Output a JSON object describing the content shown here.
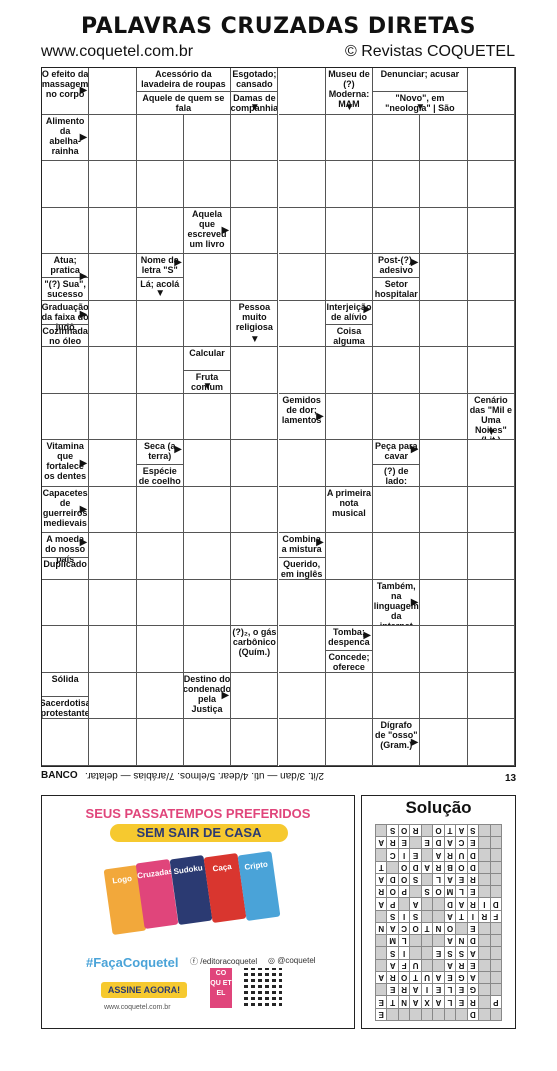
{
  "header": {
    "title": "PALAVRAS CRUZADAS DIRETAS",
    "site": "www.coquetel.com.br",
    "brand": "© Revistas COQUETEL"
  },
  "grid": {
    "clues": [
      {
        "r": 0,
        "c": 0,
        "parts": [
          "O efeito da massagem no corpo"
        ],
        "arrows": [
          {
            "d": "r",
            "y": 0.5
          }
        ]
      },
      {
        "r": 0,
        "c": 2,
        "span": 2,
        "parts": [
          "Acessório da lavadeira de roupas",
          "Aquele de quem se fala"
        ],
        "arrows": []
      },
      {
        "r": 0,
        "c": 4,
        "parts": [
          "Esgotado; cansado",
          "Damas de companhia"
        ],
        "arrows": [
          {
            "d": "d",
            "x": 0.5
          }
        ]
      },
      {
        "r": 0,
        "c": 6,
        "parts": [
          "Museu de (?) Moderna: MAM"
        ],
        "arrows": [
          {
            "d": "d",
            "x": 0.5
          }
        ]
      },
      {
        "r": 0,
        "c": 7,
        "span": 2,
        "parts": [
          "Denunciar; acusar",
          "\"Novo\", em \"neologia\" | São pagas aos correios"
        ],
        "arrows": [
          {
            "d": "d",
            "x": 0.5
          }
        ]
      },
      {
        "r": 1,
        "c": 0,
        "parts": [
          "Alimento da abelha-rainha"
        ],
        "arrows": [
          {
            "d": "r",
            "y": 0.5
          }
        ]
      },
      {
        "r": 3,
        "c": 3,
        "parts": [
          "Aquela que escreveu um livro"
        ],
        "arrows": [
          {
            "d": "r",
            "y": 0.5
          }
        ]
      },
      {
        "r": 4,
        "c": 0,
        "parts": [
          "Atua; pratica",
          "\"(?) Sua\", sucesso de Marisa Monte"
        ],
        "arrows": [
          {
            "d": "r",
            "y": 0.5
          }
        ]
      },
      {
        "r": 4,
        "c": 2,
        "parts": [
          "Nome da letra \"S\"",
          "Lá; acolá"
        ],
        "arrows": [
          {
            "d": "r",
            "y": 0.2
          },
          {
            "d": "d",
            "x": 0.5
          }
        ]
      },
      {
        "r": 4,
        "c": 7,
        "parts": [
          "Post-(?), adesivo",
          "Setor hospitalar"
        ],
        "arrows": [
          {
            "d": "r",
            "y": 0.2
          }
        ]
      },
      {
        "r": 5,
        "c": 0,
        "parts": [
          "Graduação da faixa do judô",
          "Cozinhada no óleo"
        ],
        "arrows": [
          {
            "d": "r",
            "y": 0.3
          }
        ]
      },
      {
        "r": 5,
        "c": 4,
        "parts": [
          "Pessoa muito religiosa"
        ],
        "arrows": [
          {
            "d": "d",
            "x": 0.5
          }
        ]
      },
      {
        "r": 5,
        "c": 6,
        "parts": [
          "Interjeição de alívio",
          "Coisa alguma"
        ],
        "arrows": [
          {
            "d": "r",
            "y": 0.2
          }
        ]
      },
      {
        "r": 6,
        "c": 3,
        "parts": [
          "Calcular",
          "Fruta comum em oásis"
        ],
        "arrows": [
          {
            "d": "d",
            "x": 0.5
          }
        ]
      },
      {
        "r": 7,
        "c": 5,
        "parts": [
          "Gemidos de dor; lamentos"
        ],
        "arrows": [
          {
            "d": "r",
            "y": 0.5
          }
        ]
      },
      {
        "r": 7,
        "c": 9,
        "parts": [
          "Cenário das \"Mil e Uma Noites\" (Lit.)"
        ],
        "arrows": [
          {
            "d": "d",
            "x": 0.5
          }
        ]
      },
      {
        "r": 8,
        "c": 0,
        "parts": [
          "Vitamina que fortalece os dentes"
        ],
        "arrows": [
          {
            "d": "r",
            "y": 0.5
          }
        ]
      },
      {
        "r": 8,
        "c": 2,
        "parts": [
          "Seca (a terra)",
          "Espécie de coelho (pl.)"
        ],
        "arrows": [
          {
            "d": "r",
            "y": 0.2
          }
        ]
      },
      {
        "r": 8,
        "c": 7,
        "parts": [
          "Peça para cavar",
          "(?) de lado: desprezar"
        ],
        "arrows": [
          {
            "d": "r",
            "y": 0.2
          }
        ]
      },
      {
        "r": 9,
        "c": 0,
        "parts": [
          "Capacetes de guerreiros medievais"
        ],
        "arrows": [
          {
            "d": "r",
            "y": 0.5
          }
        ]
      },
      {
        "r": 9,
        "c": 6,
        "parts": [
          "A primeira nota musical"
        ],
        "arrows": []
      },
      {
        "r": 10,
        "c": 0,
        "parts": [
          "A moeda do nosso país",
          "Duplicado"
        ],
        "arrows": [
          {
            "d": "r",
            "y": 0.2
          }
        ]
      },
      {
        "r": 10,
        "c": 5,
        "parts": [
          "Combina a mistura",
          "Querido, em inglês"
        ],
        "arrows": [
          {
            "d": "r",
            "y": 0.2
          }
        ]
      },
      {
        "r": 11,
        "c": 7,
        "parts": [
          "Também, na linguagem da internet"
        ],
        "arrows": [
          {
            "d": "r",
            "y": 0.5
          }
        ]
      },
      {
        "r": 12,
        "c": 4,
        "parts": [
          "(?)₂, o gás carbônico (Quím.)"
        ],
        "arrows": []
      },
      {
        "r": 12,
        "c": 6,
        "parts": [
          "Tomba; despenca",
          "Concede; oferece"
        ],
        "arrows": [
          {
            "d": "r",
            "y": 0.2
          }
        ]
      },
      {
        "r": 13,
        "c": 0,
        "parts": [
          "Sólida",
          "Sacerdotisa protestante"
        ],
        "arrows": []
      },
      {
        "r": 13,
        "c": 3,
        "parts": [
          "Destino do condenado pela Justiça"
        ],
        "arrows": [
          {
            "d": "r",
            "y": 0.5
          }
        ]
      },
      {
        "r": 14,
        "c": 7,
        "parts": [
          "Dígrafo de \"osso\" (Gram.)"
        ],
        "arrows": [
          {
            "d": "r",
            "y": 0.5
          }
        ]
      }
    ]
  },
  "bank": {
    "label": "BANCO",
    "text": "2/it. 3/dan — uti. 4/dear. 5/elmos. 7/arábias — delatar.",
    "page": "13"
  },
  "ad": {
    "line1": "SEUS PASSATEMPOS PREFERIDOS",
    "line2": "SEM SAIR DE CASA",
    "magazines": [
      "Logo",
      "Cruzadas",
      "Sudoku",
      "Caça",
      "Cripto"
    ],
    "hashtag": "#FaçaCoquetel",
    "facebook": "/editoracoquetel",
    "instagram": "@coquetel",
    "button": "ASSINE AGORA!",
    "url": "www.coquetel.com.br",
    "logo": "CO QU ET EL"
  },
  "solution": {
    "title": "Solução",
    "rows": [
      "  D       E ",
      "P RELAXANTE",
      "  GELEIARE ",
      "  AGEAUTORA",
      "  ERA  UFA ",
      "  ASSE  IS ",
      "  DNA   LM ",
      "  E ONTOCAN",
      "FRITA  SIS ",
      "DIRAD  A PA",
      "  ELMOS POR",
      "  REAL SODA",
      "  DOBRADO TB",
      "  DURA EIC ",
      "  ECADE ERA",
      "  SATO ROS S"
    ]
  }
}
